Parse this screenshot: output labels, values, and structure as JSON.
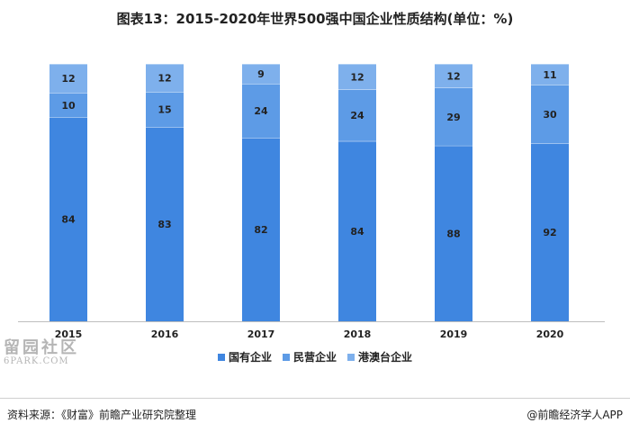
{
  "title": "图表13：2015-2020年世界500强中国企业性质结构(单位：%)",
  "chart_data": {
    "type": "bar",
    "stacked": true,
    "categories": [
      "2015",
      "2016",
      "2017",
      "2018",
      "2019",
      "2020"
    ],
    "series": [
      {
        "name": "国有企业",
        "values": [
          84,
          83,
          82,
          84,
          88,
          92
        ],
        "color": "#3f86e0"
      },
      {
        "name": "民营企业",
        "values": [
          10,
          15,
          24,
          24,
          29,
          30
        ],
        "color": "#5d9be6"
      },
      {
        "name": "港澳台企业",
        "values": [
          12,
          12,
          9,
          12,
          12,
          11
        ],
        "color": "#7eb0ec"
      }
    ],
    "legend_position": "bottom",
    "grid": false
  },
  "watermark": {
    "main": "留园社区",
    "sub": "6PARK.COM"
  },
  "footer": {
    "source": "资料来源：《财富》前瞻产业研究院整理",
    "brand": "@前瞻经济学人APP"
  }
}
